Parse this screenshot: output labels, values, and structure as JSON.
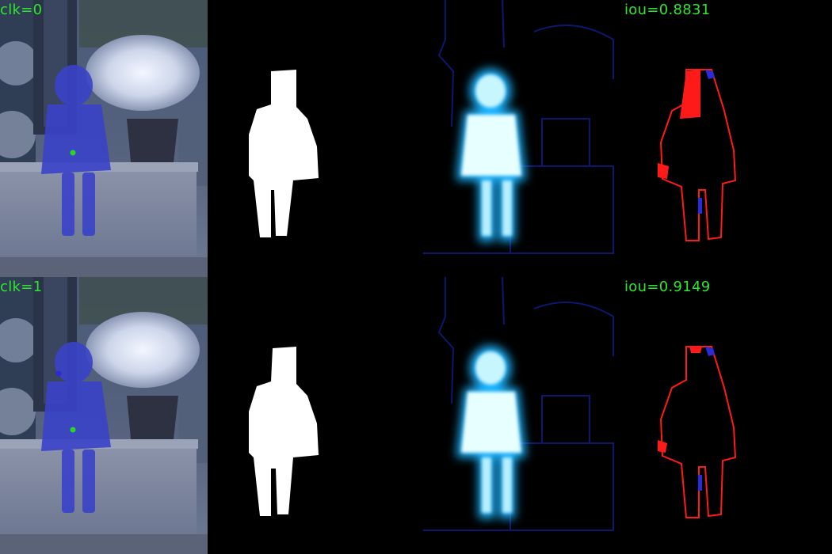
{
  "colors": {
    "label_green": "#2ee82e",
    "click_point": "#27d827",
    "overlay_blue": "#3a43c8",
    "mask_white": "#ffffff",
    "error_red": "#ff1a1a",
    "error_blue": "#2a2ad8",
    "heat_core": "#e8ffff",
    "heat_glow": "#1eb4ff"
  },
  "rows": [
    {
      "click_label": "clk=0",
      "iou_label": "iou=0.8831"
    },
    {
      "click_label": "clk=1",
      "iou_label": "iou=0.9149"
    }
  ],
  "panels": [
    "photo-overlay",
    "predicted-mask",
    "probability-map",
    "error-map"
  ]
}
